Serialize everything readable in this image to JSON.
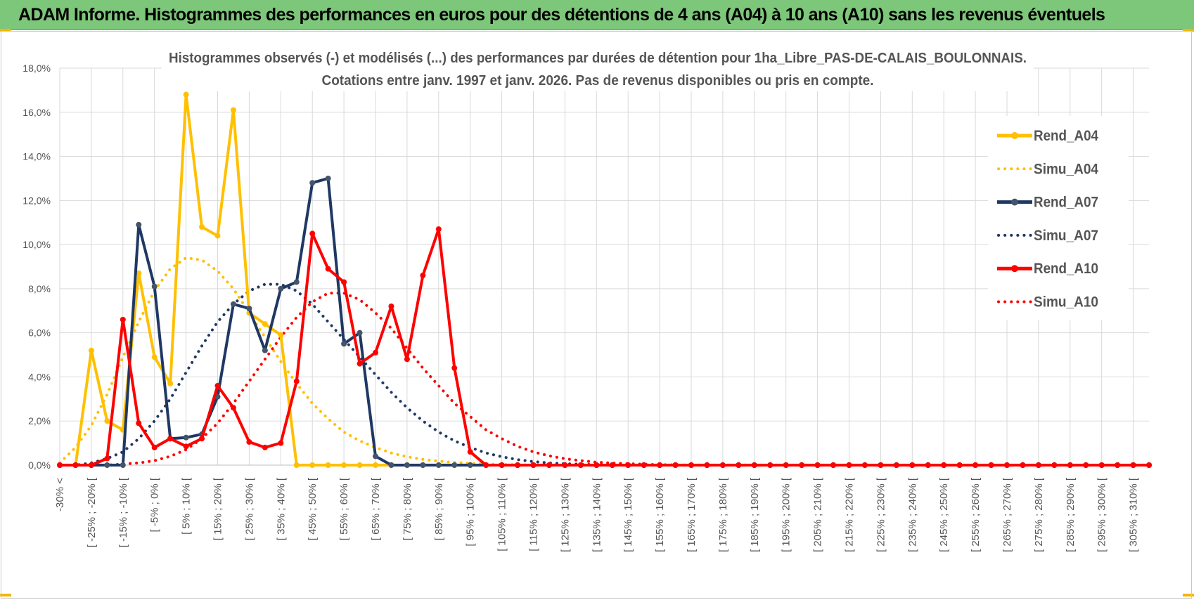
{
  "header": {
    "title": "ADAM Informe. Histogrammes des performances en euros pour des détentions de 4 ans (A04) à 10 ans (A10) sans les revenus éventuels"
  },
  "colors": {
    "banner": "#7dc77a",
    "a04": "#ffc000",
    "a07": "#1f3864",
    "a10": "#ff0000",
    "grid": "#d9d9d9"
  },
  "chart_data": {
    "type": "line",
    "title": "Histogrammes observés (-) et modélisés (...) des performances par durées de détention pour 1ha_Libre_PAS-DE-CALAIS_BOULONNAIS.",
    "subtitle": "Cotations entre janv. 1997 et janv. 2026. Pas de revenus disponibles ou pris en compte.",
    "ylim": [
      0,
      18
    ],
    "yticks": [
      "0,0%",
      "2,0%",
      "4,0%",
      "6,0%",
      "8,0%",
      "10,0%",
      "12,0%",
      "14,0%",
      "16,0%",
      "18,0%"
    ],
    "legend_position": "right",
    "categories": [
      "-30% <",
      "[ -30% ; -25% [",
      "[ -25% ; -20% [",
      "[ -20% ; -15% [",
      "[ -15% ; -10% [",
      "[ -10% ; -5% [",
      "[ -5% ; 0% [",
      "[ 0% ; 5% [",
      "[ 5% ; 10% [",
      "[ 10% ; 15% [",
      "[ 15% ; 20% [",
      "[ 20% ; 25% [",
      "[ 25% ; 30% [",
      "[ 30% ; 35% [",
      "[ 35% ; 40% [",
      "[ 40% ; 45% [",
      "[ 45% ; 50% [",
      "[ 50% ; 55% [",
      "[ 55% ; 60% [",
      "[ 60% ; 65% [",
      "[ 65% ; 70% [",
      "[ 70% ; 75% [",
      "[ 75% ; 80% [",
      "[ 80% ; 85% [",
      "[ 85% ; 90% [",
      "[ 90% ; 95% [",
      "[ 95% ; 100% [",
      "[ 100% ; 105% [",
      "[ 105% ; 110% [",
      "[ 110% ; 115% [",
      "[ 115% ; 120% [",
      "[ 120% ; 125% [",
      "[ 125% ; 130% [",
      "[ 130% ; 135% [",
      "[ 135% ; 140% [",
      "[ 140% ; 145% [",
      "[ 145% ; 150% [",
      "[ 150% ; 155% [",
      "[ 155% ; 160% [",
      "[ 160% ; 165% [",
      "[ 165% ; 170% [",
      "[ 170% ; 175% [",
      "[ 175% ; 180% [",
      "[ 180% ; 185% [",
      "[ 185% ; 190% [",
      "[ 190% ; 195% [",
      "[ 195% ; 200% [",
      "[ 200% ; 205% [",
      "[ 205% ; 210% [",
      "[ 210% ; 215% [",
      "[ 215% ; 220% [",
      "[ 220% ; 225% [",
      "[ 225% ; 230% [",
      "[ 230% ; 235% [",
      "[ 235% ; 240% [",
      "[ 240% ; 245% [",
      "[ 245% ; 250% [",
      "[ 250% ; 255% [",
      "[ 255% ; 260% [",
      "[ 260% ; 265% [",
      "[ 265% ; 270% [",
      "[ 270% ; 275% [",
      "[ 275% ; 280% [",
      "[ 280% ; 285% [",
      "[ 285% ; 290% [",
      "[ 290% ; 295% [",
      "[ 295% ; 300% [",
      "[ 300% ; 305% [",
      "[ 305% ; 310% [",
      "[ 310% ; 315% ["
    ],
    "x_tick_labels_shown": [
      "-30% <",
      "[ -25% ; -20% [",
      "[ -15% ; -10% [",
      "[ -5% ; 0% [",
      "[ 5% ; 10% [",
      "[ 15% ; 20% [",
      "[ 25% ; 30% [",
      "[ 35% ; 40% [",
      "[ 45% ; 50% [",
      "[ 55% ; 60% [",
      "[ 65% ; 70% [",
      "[ 75% ; 80% [",
      "[ 85% ; 90% [",
      "[ 95% ; 100% [",
      "[ 105% ; 110% [",
      "[ 115% ; 120% [",
      "[ 125% ; 130% [",
      "[ 135% ; 140% [",
      "[ 145% ; 150% [",
      "[ 155% ; 160% [",
      "[ 165% ; 170% [",
      "[ 175% ; 180% [",
      "[ 185% ; 190% [",
      "[ 195% ; 200% [",
      "[ 205% ; 210% [",
      "[ 215% ; 220% [",
      "[ 225% ; 230% [",
      "[ 235% ; 240% [",
      "[ 245% ; 250% [",
      "[ 255% ; 260% [",
      "[ 265% ; 270% [",
      "[ 275% ; 280% [",
      "[ 285% ; 290% [",
      "[ 295% ; 300% [",
      "[ 305% ; 310% ["
    ],
    "series": [
      {
        "name": "Rend_A04",
        "style": "solid",
        "color": "#ffc000",
        "values": [
          0,
          0,
          5.2,
          2.0,
          1.6,
          8.7,
          4.9,
          3.7,
          16.8,
          10.8,
          10.4,
          16.1,
          6.9,
          6.4,
          5.9,
          0,
          0,
          0,
          0,
          0,
          0,
          0,
          0,
          0,
          0,
          0,
          0,
          0,
          0,
          0,
          0,
          0,
          0,
          0,
          0,
          0,
          0,
          0,
          0,
          0,
          0,
          0,
          0,
          0,
          0,
          0,
          0,
          0,
          0,
          0,
          0,
          0,
          0,
          0,
          0,
          0,
          0,
          0,
          0,
          0,
          0,
          0,
          0,
          0,
          0,
          0,
          0,
          0,
          0,
          0
        ]
      },
      {
        "name": "Simu_A04",
        "style": "dotted",
        "color": "#ffc000",
        "values": [
          0.1,
          0.8,
          1.8,
          3.2,
          4.9,
          6.5,
          7.9,
          8.9,
          9.4,
          9.3,
          8.8,
          8.0,
          6.9,
          5.8,
          4.7,
          3.7,
          2.8,
          2.1,
          1.5,
          1.1,
          0.8,
          0.55,
          0.38,
          0.26,
          0.18,
          0.12,
          0.08,
          0.05,
          0.03,
          0.02,
          0.01,
          0,
          0,
          0,
          0,
          0,
          0,
          0,
          0,
          0,
          0,
          0,
          0,
          0,
          0,
          0,
          0,
          0,
          0,
          0,
          0,
          0,
          0,
          0,
          0,
          0,
          0,
          0,
          0,
          0,
          0,
          0,
          0,
          0,
          0,
          0,
          0,
          0,
          0,
          0
        ]
      },
      {
        "name": "Rend_A07",
        "style": "solid",
        "color": "#1f3864",
        "values": [
          0,
          0,
          0,
          0,
          0,
          10.9,
          8.1,
          1.2,
          1.25,
          1.4,
          3.1,
          7.3,
          7.1,
          5.2,
          8.0,
          8.3,
          12.8,
          13.0,
          5.5,
          6.0,
          0.4,
          0,
          0,
          0,
          0,
          0,
          0,
          0,
          0,
          0,
          0,
          0,
          0,
          0,
          0,
          0,
          0,
          0,
          0,
          0,
          0,
          0,
          0,
          0,
          0,
          0,
          0,
          0,
          0,
          0,
          0,
          0,
          0,
          0,
          0,
          0,
          0,
          0,
          0,
          0,
          0,
          0,
          0,
          0,
          0,
          0,
          0,
          0,
          0,
          0
        ]
      },
      {
        "name": "Simu_A07",
        "style": "dotted",
        "color": "#1f3864",
        "values": [
          0,
          0,
          0.1,
          0.3,
          0.6,
          1.2,
          2.0,
          3.0,
          4.2,
          5.4,
          6.5,
          7.3,
          7.9,
          8.2,
          8.2,
          7.9,
          7.3,
          6.5,
          5.7,
          4.9,
          4.1,
          3.3,
          2.6,
          2.0,
          1.5,
          1.1,
          0.8,
          0.55,
          0.38,
          0.25,
          0.16,
          0.1,
          0.06,
          0.04,
          0.02,
          0.01,
          0,
          0,
          0,
          0,
          0,
          0,
          0,
          0,
          0,
          0,
          0,
          0,
          0,
          0,
          0,
          0,
          0,
          0,
          0,
          0,
          0,
          0,
          0,
          0,
          0,
          0,
          0,
          0,
          0,
          0,
          0,
          0,
          0,
          0
        ]
      },
      {
        "name": "Rend_A10",
        "style": "solid",
        "color": "#ff0000",
        "values": [
          0,
          0,
          0,
          0.3,
          6.6,
          1.9,
          0.8,
          1.2,
          0.85,
          1.2,
          3.6,
          2.6,
          1.05,
          0.8,
          1.0,
          3.8,
          10.5,
          8.9,
          8.3,
          4.6,
          5.1,
          7.2,
          4.8,
          8.6,
          10.7,
          4.4,
          0.6,
          0,
          0,
          0,
          0,
          0,
          0,
          0,
          0,
          0,
          0,
          0,
          0,
          0,
          0,
          0,
          0,
          0,
          0,
          0,
          0,
          0,
          0,
          0,
          0,
          0,
          0,
          0,
          0,
          0,
          0,
          0,
          0,
          0,
          0,
          0,
          0,
          0,
          0,
          0,
          0,
          0,
          0,
          0
        ]
      },
      {
        "name": "Simu_A10",
        "style": "dotted",
        "color": "#ff0000",
        "values": [
          0,
          0,
          0,
          0,
          0.05,
          0.1,
          0.2,
          0.4,
          0.7,
          1.2,
          1.9,
          2.8,
          3.8,
          4.8,
          5.8,
          6.7,
          7.4,
          7.8,
          7.8,
          7.5,
          6.9,
          6.2,
          5.3,
          4.4,
          3.6,
          2.8,
          2.2,
          1.6,
          1.2,
          0.85,
          0.6,
          0.42,
          0.29,
          0.2,
          0.13,
          0.09,
          0.06,
          0.04,
          0.02,
          0.01,
          0,
          0,
          0,
          0,
          0,
          0,
          0,
          0,
          0,
          0,
          0,
          0,
          0,
          0,
          0,
          0,
          0,
          0,
          0,
          0,
          0,
          0,
          0,
          0,
          0,
          0,
          0,
          0,
          0,
          0
        ]
      }
    ]
  }
}
